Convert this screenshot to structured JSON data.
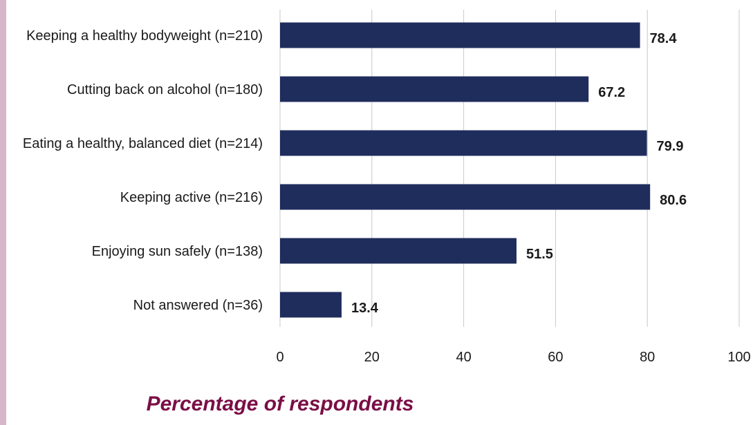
{
  "colors": {
    "bar": "#1f2d5c",
    "grid": "#c8c8c8",
    "title": "#7a0e45",
    "strip": "#d6b7c9"
  },
  "chart_data": {
    "type": "bar",
    "orientation": "horizontal",
    "categories": [
      "Keeping a healthy bodyweight (n=210)",
      "Cutting back on alcohol (n=180)",
      "Eating a healthy, balanced diet (n=214)",
      "Keeping active (n=216)",
      "Enjoying sun safely (n=138)",
      "Not answered (n=36)"
    ],
    "values": [
      78.4,
      67.2,
      79.9,
      80.6,
      51.5,
      13.4
    ],
    "data_labels": [
      "78.4",
      "67.2",
      "79.9",
      "80.6",
      "51.5",
      "13.4"
    ],
    "x_ticks": [
      "0",
      "20",
      "40",
      "60",
      "80",
      "100"
    ],
    "xlim": [
      0,
      100
    ],
    "xlabel": "Percentage of respondents",
    "ylabel": "",
    "title": "",
    "grid": true,
    "legend": "none"
  }
}
